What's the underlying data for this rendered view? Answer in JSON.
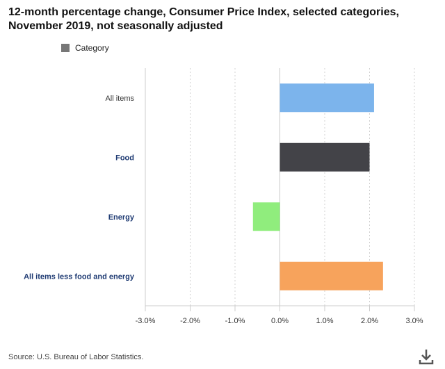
{
  "chart_data": {
    "type": "bar",
    "orientation": "horizontal",
    "title": "12-month percentage change, Consumer Price Index, selected categories, November 2019, not seasonally adjusted",
    "legend": {
      "label": "Category",
      "color": "#777777",
      "placement": "top-left"
    },
    "categories": [
      "All items",
      "Food",
      "Energy",
      "All items less food and energy"
    ],
    "values": [
      2.1,
      2.0,
      -0.6,
      2.3
    ],
    "colors": [
      "#7cb4ec",
      "#434348",
      "#90ed7d",
      "#f7a35c"
    ],
    "label_colors": [
      "#333333",
      "#1f3b73",
      "#1f3b73",
      "#1f3b73"
    ],
    "label_bold": [
      false,
      true,
      true,
      true
    ],
    "xlim": [
      -3.0,
      3.0
    ],
    "xticks": [
      -3.0,
      -2.0,
      -1.0,
      0.0,
      1.0,
      2.0,
      3.0
    ],
    "xtick_labels": [
      "-3.0%",
      "-2.0%",
      "-1.0%",
      "0.0%",
      "1.0%",
      "2.0%",
      "3.0%"
    ],
    "xlabel": "",
    "ylabel": "",
    "grid": true
  },
  "source": "Source: U.S. Bureau of Labor Statistics.",
  "icons": {
    "download": "download-icon"
  }
}
